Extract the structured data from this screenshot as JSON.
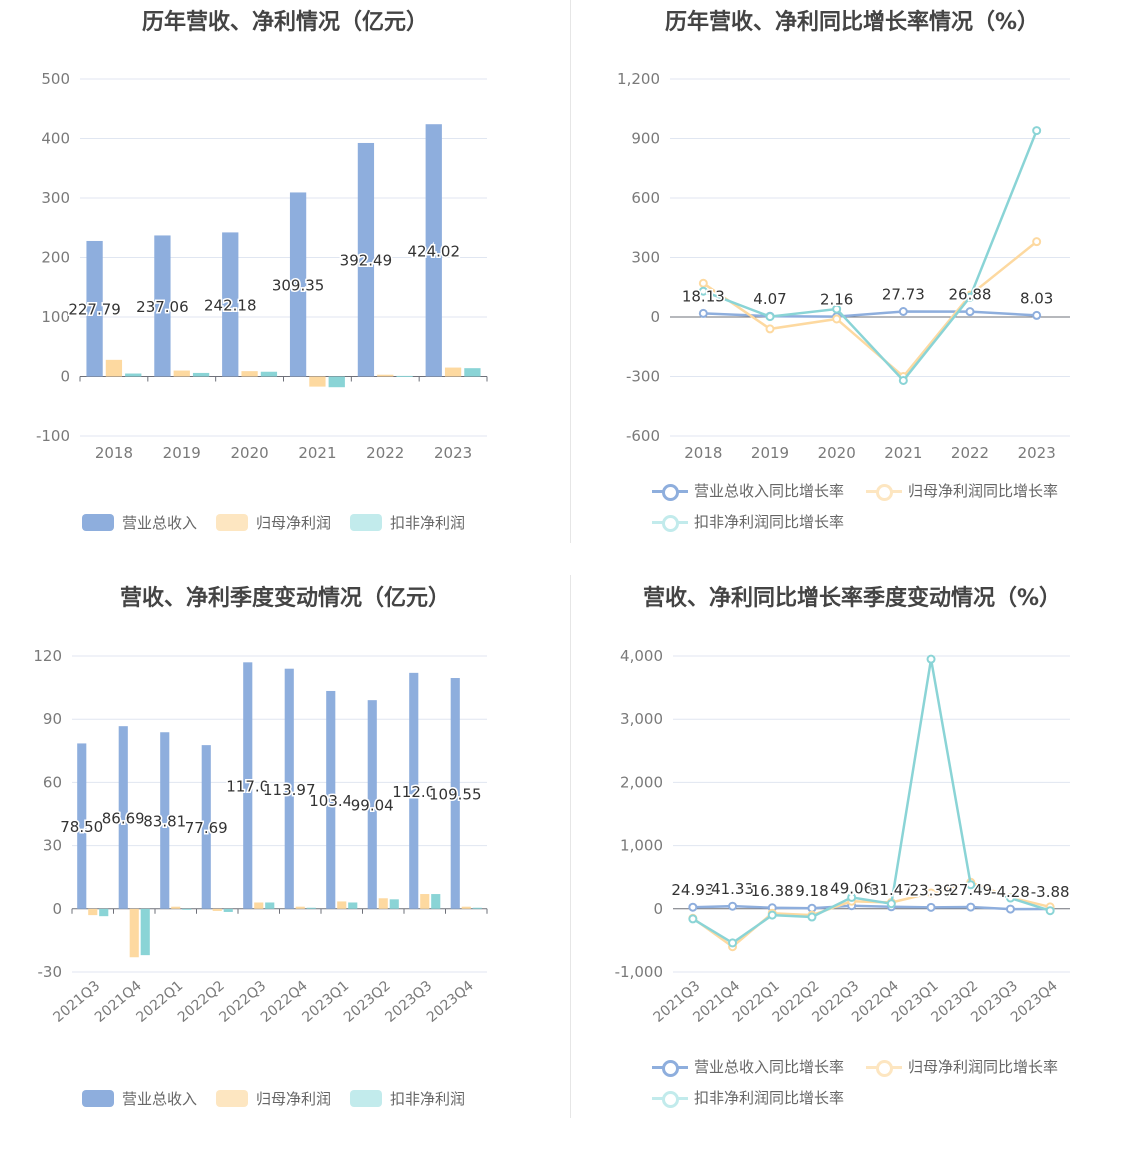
{
  "charts": [
    {
      "title": "历年营收、净利情况（亿元）",
      "legend": [
        "营业总收入",
        "归母净利润",
        "扣非净利润"
      ],
      "yticks": [
        "500",
        "400",
        "300",
        "200",
        "100",
        "0",
        "-100"
      ],
      "xticks": [
        "2018",
        "2019",
        "2020",
        "2021",
        "2022",
        "2023"
      ]
    },
    {
      "title": "历年营收、净利同比增长率情况（%）",
      "legend": [
        "营业总收入同比增长率",
        "归母净利润同比增长率",
        "扣非净利润同比增长率"
      ],
      "yticks": [
        "1,200",
        "900",
        "600",
        "300",
        "0",
        "-300",
        "-600"
      ],
      "xticks": [
        "2018",
        "2019",
        "2020",
        "2021",
        "2022",
        "2023"
      ]
    },
    {
      "title": "营收、净利季度变动情况（亿元）",
      "legend": [
        "营业总收入",
        "归母净利润",
        "扣非净利润"
      ],
      "yticks": [
        "120",
        "90",
        "60",
        "30",
        "0",
        "-30"
      ],
      "xticks": [
        "2021Q3",
        "2021Q4",
        "2022Q1",
        "2022Q2",
        "2022Q3",
        "2022Q4",
        "2023Q1",
        "2023Q2",
        "2023Q3",
        "2023Q4"
      ]
    },
    {
      "title": "营收、净利同比增长率季度变动情况（%）",
      "legend": [
        "营业总收入同比增长率",
        "归母净利润同比增长率",
        "扣非净利润同比增长率"
      ],
      "yticks": [
        "4,000",
        "3,000",
        "2,000",
        "1,000",
        "0",
        "-1,000"
      ],
      "xticks": [
        "2021Q3",
        "2021Q4",
        "2022Q1",
        "2022Q2",
        "2022Q3",
        "2022Q4",
        "2023Q1",
        "2023Q2",
        "2023Q3",
        "2023Q4"
      ]
    }
  ],
  "chart_data": [
    {
      "type": "bar",
      "title": "历年营收、净利情况（亿元）",
      "categories": [
        "2018",
        "2019",
        "2020",
        "2021",
        "2022",
        "2023"
      ],
      "ylim": [
        -100,
        500
      ],
      "series": [
        {
          "name": "营业总收入",
          "color": "#8eaedd",
          "values": [
            227.79,
            237.06,
            242.18,
            309.35,
            392.49,
            424.02
          ],
          "labels": [
            "227.79",
            "237.06",
            "242.18",
            "309.35",
            "392.49",
            "424.02"
          ]
        },
        {
          "name": "归母净利润",
          "color": "#fdd9a0",
          "values": [
            28,
            10,
            9,
            -17,
            3,
            15
          ]
        },
        {
          "name": "扣非净利润",
          "color": "#8ad4d6",
          "values": [
            5,
            6,
            8,
            -18,
            1,
            14
          ]
        }
      ],
      "legend_position": "bottom"
    },
    {
      "type": "line",
      "title": "历年营收、净利同比增长率情况（%）",
      "categories": [
        "2018",
        "2019",
        "2020",
        "2021",
        "2022",
        "2023"
      ],
      "ylim": [
        -600,
        1200
      ],
      "series": [
        {
          "name": "营业总收入同比增长率",
          "color": "#8eaedd",
          "values": [
            18.13,
            4.07,
            2.16,
            27.73,
            26.88,
            8.03
          ],
          "labels": [
            "18.13",
            "4.07",
            "2.16",
            "27.73",
            "26.88",
            "8.03"
          ]
        },
        {
          "name": "归母净利润同比增长率",
          "color": "#fdd9a0",
          "values": [
            170,
            -60,
            -10,
            -300,
            110,
            380
          ]
        },
        {
          "name": "扣非净利润同比增长率",
          "color": "#8ad4d6",
          "values": [
            130,
            2,
            40,
            -320,
            100,
            940
          ]
        }
      ],
      "legend_position": "bottom"
    },
    {
      "type": "bar",
      "title": "营收、净利季度变动情况（亿元）",
      "categories": [
        "2021Q3",
        "2021Q4",
        "2022Q1",
        "2022Q2",
        "2022Q3",
        "2022Q4",
        "2023Q1",
        "2023Q2",
        "2023Q3",
        "2023Q4"
      ],
      "ylim": [
        -30,
        120
      ],
      "series": [
        {
          "name": "营业总收入",
          "color": "#8eaedd",
          "values": [
            78.5,
            86.69,
            83.81,
            77.69,
            117.0,
            113.97,
            103.4,
            99.04,
            112.0,
            109.55
          ],
          "labels": [
            "78.50",
            "86.69",
            "83.81",
            "77.69",
            "117.0",
            "113.97",
            "103.4",
            "99.04",
            "112.0",
            "109.55"
          ]
        },
        {
          "name": "归母净利润",
          "color": "#fdd9a0",
          "values": [
            -3,
            -23,
            1,
            -1,
            3,
            1,
            3.5,
            5,
            7,
            1
          ]
        },
        {
          "name": "扣非净利润",
          "color": "#8ad4d6",
          "values": [
            -3.5,
            -22,
            0,
            -1.5,
            3,
            0.5,
            3,
            4.5,
            7,
            0.5
          ]
        }
      ],
      "legend_position": "bottom"
    },
    {
      "type": "line",
      "title": "营收、净利同比增长率季度变动情况（%）",
      "categories": [
        "2021Q3",
        "2021Q4",
        "2022Q1",
        "2022Q2",
        "2022Q3",
        "2022Q4",
        "2023Q1",
        "2023Q2",
        "2023Q3",
        "2023Q4"
      ],
      "ylim": [
        -1000,
        4000
      ],
      "series": [
        {
          "name": "营业总收入同比增长率",
          "color": "#8eaedd",
          "values": [
            24.93,
            41.33,
            16.38,
            9.18,
            49.06,
            31.47,
            23.39,
            27.49,
            -4.28,
            -3.88
          ],
          "labels": [
            "24.93",
            "41.33",
            "16.38",
            "9.18",
            "49.06",
            "31.47",
            "23.39",
            "27.49",
            "-4.28",
            "-3.88"
          ]
        },
        {
          "name": "归母净利润同比增长率",
          "color": "#fdd9a0",
          "values": [
            -150,
            -600,
            -70,
            -100,
            120,
            100,
            250,
            420,
            180,
            30
          ]
        },
        {
          "name": "扣非净利润同比增长率",
          "color": "#8ad4d6",
          "values": [
            -160,
            -540,
            -100,
            -130,
            180,
            80,
            3950,
            380,
            170,
            -30
          ]
        }
      ],
      "legend_position": "bottom"
    }
  ]
}
